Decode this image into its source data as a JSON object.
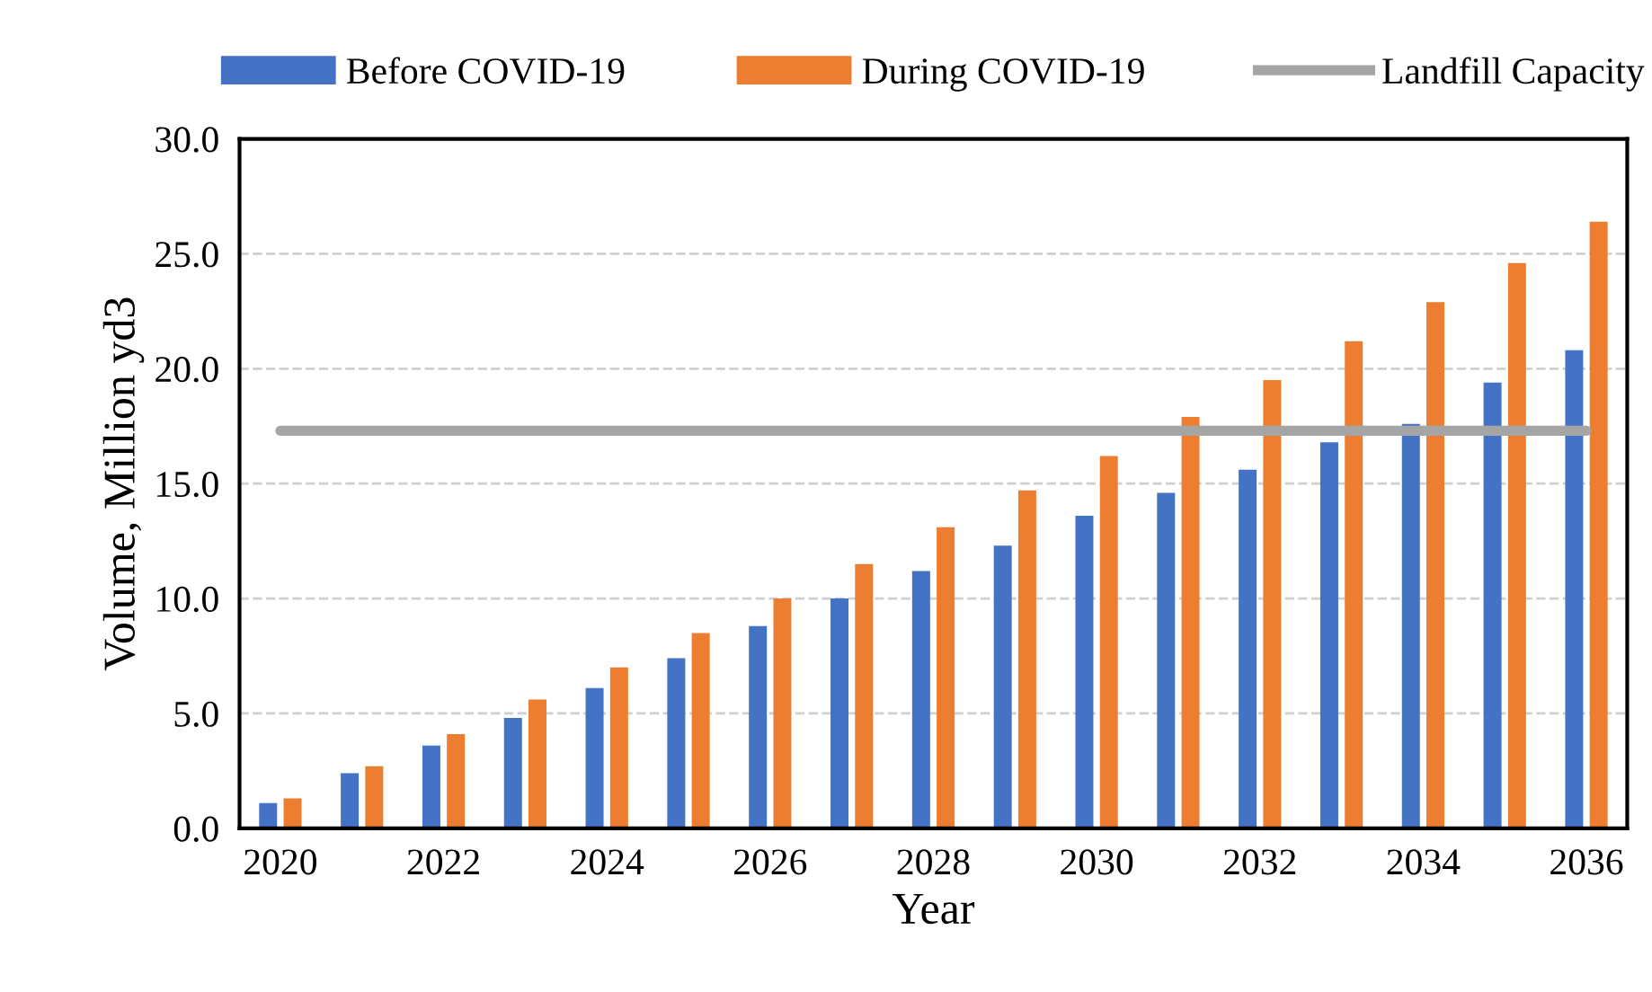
{
  "chart_data": {
    "type": "bar",
    "xlabel": "Year",
    "ylabel": "Volume, Million yd3",
    "categories": [
      "2020",
      null,
      "2022",
      null,
      "2024",
      null,
      "2026",
      null,
      "2028",
      null,
      "2030",
      null,
      "2032",
      null,
      "2034",
      null,
      "2036"
    ],
    "series": [
      {
        "name": "Before COVID-19",
        "color": "#4472c4",
        "values": [
          1.1,
          2.4,
          3.6,
          4.8,
          6.1,
          7.4,
          8.8,
          10.0,
          11.2,
          12.3,
          13.6,
          14.6,
          15.6,
          16.8,
          17.6,
          19.4,
          20.8
        ]
      },
      {
        "name": "During COVID-19",
        "color": "#ed7d31",
        "values": [
          1.3,
          2.7,
          4.1,
          5.6,
          7.0,
          8.5,
          10.0,
          11.5,
          13.1,
          14.7,
          16.2,
          17.9,
          19.5,
          21.2,
          22.9,
          24.6,
          26.4
        ]
      },
      {
        "name": "Landfill Capacity",
        "type": "line",
        "color": "#a5a5a5",
        "values": [
          17.3,
          17.3,
          17.3,
          17.3,
          17.3,
          17.3,
          17.3,
          17.3,
          17.3,
          17.3,
          17.3,
          17.3,
          17.3,
          17.3,
          17.3,
          17.3,
          17.3
        ]
      }
    ],
    "ylim": [
      0,
      30
    ],
    "yticks": [
      {
        "value": 0,
        "label": "0.0"
      },
      {
        "value": 5,
        "label": "5.0"
      },
      {
        "value": 10,
        "label": "10.0"
      },
      {
        "value": 15,
        "label": "15.0"
      },
      {
        "value": 20,
        "label": "20.0"
      },
      {
        "value": 25,
        "label": "25.0"
      },
      {
        "value": 30,
        "label": "30.0"
      }
    ],
    "grid": "y",
    "legend": "top"
  }
}
